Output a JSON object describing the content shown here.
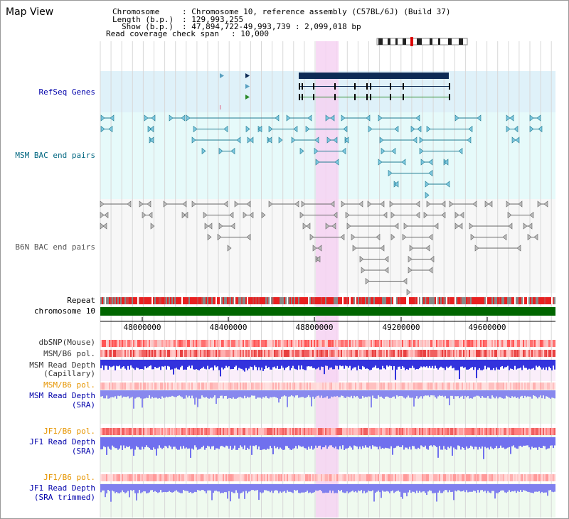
{
  "header": {
    "title": "Map View",
    "chromosome_label": "Chromosome",
    "chromosome_value": ": Chromosome 10, reference assembly (C57BL/6J) (Build 37)",
    "length_label": "Length (b.p.)",
    "length_value": ": 129,993,255",
    "show_label": "Show (b.p.)",
    "show_value": ": 47,894,722-49,993,739 : 2,099,018 bp",
    "span_label": "Read coverage check span",
    "span_value": ": 10,000"
  },
  "tracks": {
    "refseq": "RefSeq Genes",
    "msm_bac": "MSM BAC end pairs",
    "b6n_bac": "B6N BAC end pairs",
    "repeat": "Repeat",
    "chromosome": "chromosome 10",
    "dbsnp": "dbSNP(Mouse)",
    "msm_b6_pol": "MSM/B6 pol.",
    "msm_depth_cap_1": "MSM Read Depth",
    "msm_depth_cap_2": "(Capillary)",
    "msm_b6_pol_2": "MSM/B6 pol.",
    "msm_depth_sra_1": "MSM Read Depth",
    "msm_depth_sra_2": "(SRA)",
    "jf1_pol_1": "JF1/B6 pol.",
    "jf1_depth_1": "JF1 Read Depth",
    "jf1_depth_2": "(SRA)",
    "jf1_pol_2": "JF1/B6 pol.",
    "jf1_trim_1": "JF1 Read Depth",
    "jf1_trim_2": "(SRA trimmed)"
  },
  "axis": {
    "ticks": [
      "48000000",
      "48400000",
      "48800000",
      "49200000",
      "49600000"
    ],
    "tick_values": [
      48000000,
      48400000,
      48800000,
      49200000,
      49600000
    ]
  },
  "colors": {
    "refseq_bg": "#dff1f9",
    "msm_bg": "#e6fafa",
    "b6n_bg": "#f7f7f7",
    "highlight": "#f6d2f2",
    "msm_line": "#1f7a90",
    "gene_dark": "#0d2b55",
    "chromosome": "#006600",
    "depth_blue": "#3333dd",
    "depth_light": "#8888ee",
    "label_blue": "#0000aa",
    "label_teal": "#006680",
    "label_orange": "#e69500"
  }
}
